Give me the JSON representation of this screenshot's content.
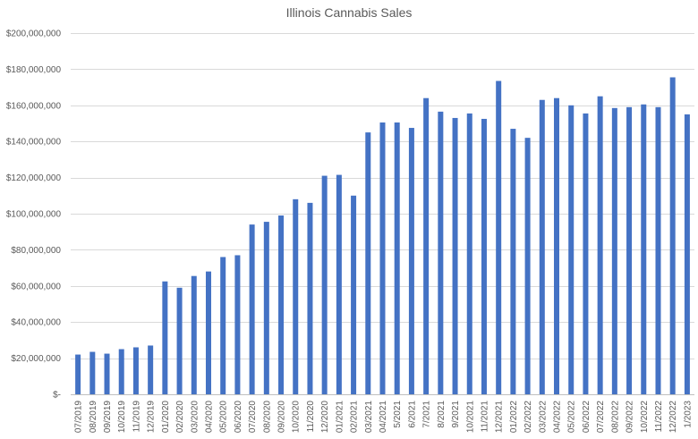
{
  "chart_data": {
    "type": "bar",
    "title": "Illinois Cannabis Sales",
    "xlabel": "",
    "ylabel": "",
    "ylim": [
      0,
      200000000
    ],
    "yticks": [
      0,
      20000000,
      40000000,
      60000000,
      80000000,
      100000000,
      120000000,
      140000000,
      160000000,
      180000000,
      200000000
    ],
    "ytick_labels": [
      "$-",
      "$20,000,000",
      "$40,000,000",
      "$60,000,000",
      "$80,000,000",
      "$100,000,000",
      "$120,000,000",
      "$140,000,000",
      "$160,000,000",
      "$180,000,000",
      "$200,000,000"
    ],
    "grid": true,
    "legend": "none",
    "bar_color": "#4472C4",
    "categories": [
      "07/2019",
      "08/2019",
      "09/2019",
      "10/2019",
      "11/2019",
      "12/2019",
      "01/2020",
      "02/2020",
      "03/2020",
      "04/2020",
      "05/2020",
      "06/2020",
      "07/2020",
      "08/2020",
      "09/2020",
      "10/2020",
      "11/2020",
      "12/2020",
      "01/2021",
      "02/2021",
      "03/2021",
      "04/2021",
      "5/2021",
      "6/2021",
      "7/2021",
      "8/2021",
      "9/2021",
      "10/2021",
      "11/2021",
      "12/2021",
      "01/2022",
      "02/2022",
      "03/2022",
      "04/2022",
      "05/2022",
      "06/2022",
      "07/2022",
      "08/2022",
      "09/2022",
      "10/2022",
      "11/2022",
      "12/2022",
      "1/2023"
    ],
    "values": [
      22000000,
      23500000,
      22500000,
      25000000,
      26000000,
      27000000,
      62500000,
      59000000,
      65500000,
      68000000,
      76000000,
      77000000,
      94000000,
      95500000,
      99000000,
      108000000,
      106000000,
      121000000,
      121500000,
      110000000,
      145000000,
      150500000,
      150500000,
      147500000,
      164000000,
      156500000,
      153000000,
      155500000,
      152500000,
      173500000,
      147000000,
      142000000,
      163000000,
      164000000,
      160000000,
      155500000,
      165000000,
      158500000,
      159000000,
      160500000,
      159000000,
      175500000,
      155000000
    ]
  }
}
